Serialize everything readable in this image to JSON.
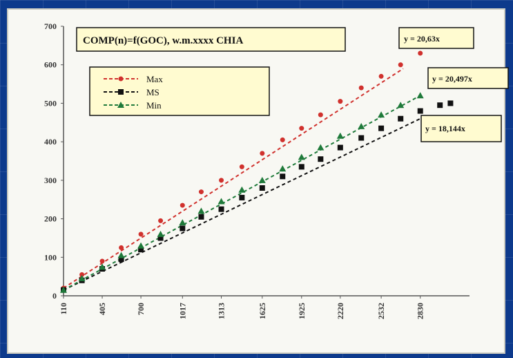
{
  "chart_data": {
    "type": "scatter",
    "title": "COMP(n)=f(GOC), w.m.xxxx CHIA",
    "xlabel": "",
    "ylabel": "",
    "ylim": [
      0,
      700
    ],
    "y_ticks": [
      "0",
      "100",
      "200",
      "300",
      "400",
      "500",
      "600",
      "700"
    ],
    "x_tick_labels": [
      "110",
      "405",
      "700",
      "1017",
      "1313",
      "1625",
      "1925",
      "2220",
      "2532",
      "2830"
    ],
    "x_ticks": [
      110,
      405,
      700,
      1017,
      1313,
      1625,
      1925,
      2220,
      2532,
      2830
    ],
    "xlim": [
      110,
      3100
    ],
    "grid": false,
    "legend_position": "top-left",
    "series": [
      {
        "name": "Max",
        "color": "#d0312d",
        "marker": "circle",
        "x": [
          110,
          250,
          405,
          550,
          700,
          850,
          1017,
          1160,
          1313,
          1470,
          1625,
          1780,
          1925,
          2070,
          2220,
          2380,
          2532,
          2680,
          2830
        ],
        "values": [
          20,
          55,
          90,
          125,
          160,
          195,
          235,
          270,
          300,
          335,
          370,
          405,
          435,
          470,
          505,
          540,
          570,
          600,
          630
        ],
        "trend": [
          [
            110,
            20
          ],
          [
            2700,
            590
          ]
        ]
      },
      {
        "name": "MS",
        "color": "#111111",
        "marker": "square",
        "x": [
          110,
          250,
          405,
          550,
          700,
          850,
          1017,
          1160,
          1313,
          1470,
          1625,
          1780,
          1925,
          2070,
          2220,
          2380,
          2532,
          2680,
          2830,
          2980,
          3060
        ],
        "values": [
          15,
          40,
          70,
          95,
          120,
          150,
          175,
          205,
          225,
          255,
          280,
          310,
          335,
          355,
          385,
          410,
          435,
          460,
          480,
          495,
          500
        ],
        "trend": [
          [
            110,
            15
          ],
          [
            2830,
            460
          ]
        ]
      },
      {
        "name": "Min",
        "color": "#1f7a3a",
        "marker": "triangle",
        "x": [
          110,
          250,
          405,
          550,
          700,
          850,
          1017,
          1160,
          1313,
          1470,
          1625,
          1780,
          1925,
          2070,
          2220,
          2380,
          2532,
          2680,
          2830
        ],
        "values": [
          15,
          45,
          75,
          105,
          130,
          160,
          190,
          220,
          245,
          275,
          300,
          330,
          360,
          385,
          415,
          440,
          470,
          495,
          520
        ],
        "trend": [
          [
            110,
            15
          ],
          [
            2830,
            520
          ]
        ]
      }
    ],
    "equations": [
      "y = 20,63x",
      "y = 20,497x",
      "y = 18,144x"
    ]
  },
  "colors": {
    "background": "#0d3a8c",
    "panel": "#f8f8f3",
    "box_fill": "#fffbd0"
  }
}
